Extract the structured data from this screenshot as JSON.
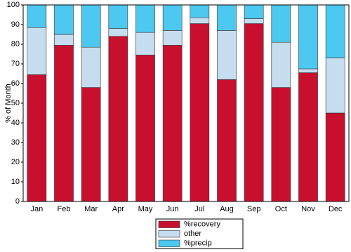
{
  "chart_data": {
    "type": "stacked_bar",
    "y_label": "% of Month",
    "categories": [
      "Jan",
      "Feb",
      "Mar",
      "Apr",
      "May",
      "Jun",
      "Jul",
      "Aug",
      "Sep",
      "Oct",
      "Nov",
      "Dec"
    ],
    "series": [
      {
        "name": "%recovery",
        "color": "#c8102e",
        "values": [
          64.5,
          79.5,
          58,
          84,
          74.5,
          79.5,
          90.5,
          62,
          90.5,
          58,
          65.5,
          45
        ]
      },
      {
        "name": "other",
        "color": "#c6dcef",
        "values": [
          24,
          5.5,
          20.5,
          4,
          11.5,
          7.5,
          3,
          25,
          2.5,
          23,
          2,
          28
        ]
      },
      {
        "name": "%precip",
        "color": "#4dc8f0",
        "values": [
          11.5,
          15,
          21.5,
          12,
          14,
          13,
          6.5,
          13,
          7,
          19,
          32.5,
          27
        ]
      }
    ],
    "ylim": [
      0,
      100
    ],
    "yticks": [
      0,
      10,
      20,
      30,
      40,
      50,
      60,
      70,
      80,
      90,
      100
    ],
    "grid": false,
    "legend": "bottom"
  }
}
